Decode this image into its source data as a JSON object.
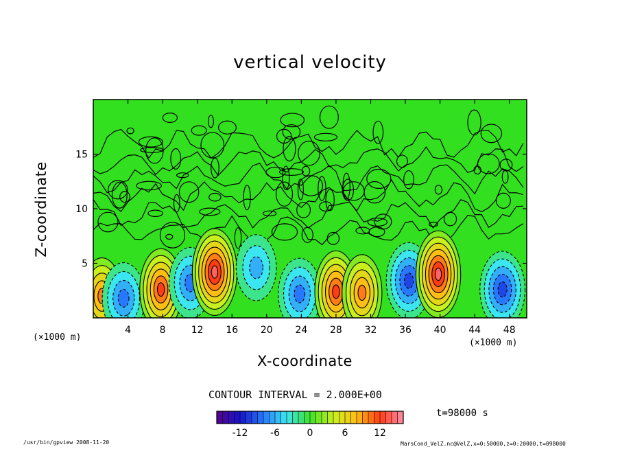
{
  "chart_data": {
    "type": "heatmap",
    "title": "vertical velocity",
    "xlabel": "X-coordinate",
    "ylabel": "Z-coordinate",
    "x_unit_label": "(×1000 m)",
    "xlim": [
      0,
      50
    ],
    "ylim": [
      0,
      20
    ],
    "x_ticks": [
      4,
      8,
      12,
      16,
      20,
      24,
      28,
      32,
      36,
      40,
      44,
      48
    ],
    "y_ticks": [
      5,
      10,
      15
    ],
    "contour_interval_label": "CONTOUR INTERVAL = 2.000E+00",
    "colorbar": {
      "range": [
        -16,
        16
      ],
      "ticks": [
        -12,
        -6,
        0,
        6,
        12
      ]
    },
    "time_label": "t=98000 s",
    "cells": [
      {
        "x": 1.0,
        "z": 2.0,
        "w": 10
      },
      {
        "x": 3.5,
        "z": 1.8,
        "w": -8
      },
      {
        "x": 7.8,
        "z": 2.6,
        "w": 12
      },
      {
        "x": 11.2,
        "z": 3.2,
        "w": -8
      },
      {
        "x": 14.0,
        "z": 4.2,
        "w": 14
      },
      {
        "x": 18.8,
        "z": 4.6,
        "w": -6
      },
      {
        "x": 23.8,
        "z": 2.2,
        "w": -8
      },
      {
        "x": 28.0,
        "z": 2.4,
        "w": 12
      },
      {
        "x": 31.0,
        "z": 2.3,
        "w": 10
      },
      {
        "x": 36.4,
        "z": 3.4,
        "w": -10
      },
      {
        "x": 39.8,
        "z": 4.0,
        "w": 14
      },
      {
        "x": 47.2,
        "z": 2.6,
        "w": -10
      }
    ],
    "grid": false,
    "legend": "bottom"
  },
  "footer": {
    "left": "/usr/bin/gpview  2008-11-20",
    "right": "MarsCond_VelZ.nc@VelZ,x=0:50000,z=0:20000,t=098000"
  },
  "colors": {
    "background_field": "#33e01f",
    "positive_max": "#ff1f1f",
    "negative_max": "#1f3fff",
    "contour": "#000000"
  }
}
